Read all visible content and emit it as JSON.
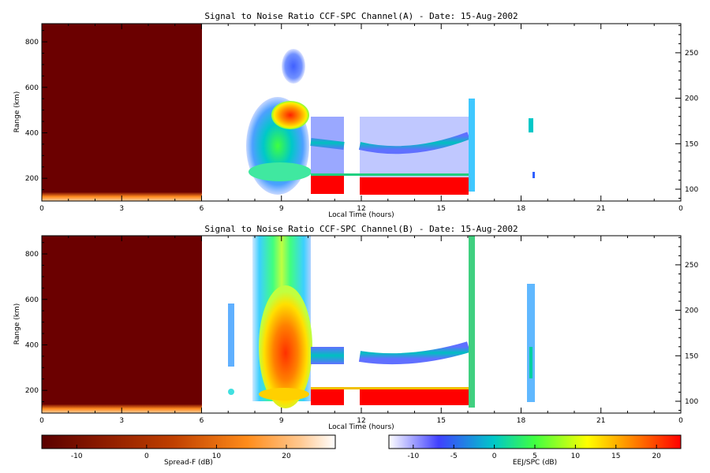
{
  "chart_data": [
    {
      "type": "heatmap",
      "title": "Signal to Noise Ratio CCF-SPC Channel(A) - Date: 15-Aug-2002",
      "xlabel": "Local Time (hours)",
      "ylabel": "Range (km)",
      "xlim": [
        0,
        24
      ],
      "ylim": [
        100,
        880
      ],
      "y2lim": [
        87,
        282
      ],
      "x_ticks": [
        "0",
        "3",
        "6",
        "9",
        "12",
        "15",
        "18",
        "21",
        "0"
      ],
      "y_ticks": [
        "200",
        "400",
        "600",
        "800"
      ],
      "y2_ticks": [
        "100",
        "150",
        "200",
        "250"
      ],
      "regions": [
        {
          "kind": "spread-f-background",
          "x": [
            0,
            6
          ],
          "y": [
            100,
            880
          ],
          "value_db": -15
        },
        {
          "kind": "spread-f-bottom-echo",
          "x": [
            0,
            6
          ],
          "y": [
            100,
            130
          ],
          "value_db": 15
        },
        {
          "kind": "spread-f-blob",
          "x": [
            8,
            10.1
          ],
          "y": [
            170,
            560
          ],
          "value_db": 8
        },
        {
          "kind": "spread-f-hotspot",
          "x": [
            9,
            9.8
          ],
          "y": [
            420,
            510
          ],
          "value_db": 20
        },
        {
          "kind": "spread-f-cap",
          "x": [
            9.2,
            9.8
          ],
          "y": [
            580,
            720
          ],
          "value_db": 0
        },
        {
          "kind": "eej-band",
          "x": [
            10.1,
            16.1
          ],
          "y": [
            120,
            200
          ],
          "value_db": 22
        },
        {
          "kind": "eej-layer",
          "x": [
            10.1,
            16.1
          ],
          "y": [
            300,
            360
          ],
          "value_db": 0
        },
        {
          "kind": "eej-patch",
          "x": [
            18.3,
            18.5
          ],
          "y": [
            380,
            430
          ],
          "value_db": 5
        }
      ]
    },
    {
      "type": "heatmap",
      "title": "Signal to Noise Ratio CCF-SPC Channel(B) - Date: 15-Aug-2002",
      "xlabel": "Local Time (hours)",
      "ylabel": "Range (km)",
      "xlim": [
        0,
        24
      ],
      "ylim": [
        100,
        880
      ],
      "y2lim": [
        87,
        282
      ],
      "x_ticks": [
        "0",
        "3",
        "6",
        "9",
        "12",
        "15",
        "18",
        "21",
        "0"
      ],
      "y_ticks": [
        "200",
        "400",
        "600",
        "800"
      ],
      "y2_ticks": [
        "100",
        "150",
        "200",
        "250"
      ],
      "regions": [
        {
          "kind": "spread-f-background",
          "x": [
            0,
            6
          ],
          "y": [
            100,
            880
          ],
          "value_db": -15
        },
        {
          "kind": "spread-f-bottom-echo",
          "x": [
            0,
            6
          ],
          "y": [
            100,
            130
          ],
          "value_db": 15
        },
        {
          "kind": "spread-f-plume",
          "x": [
            8,
            10.1
          ],
          "y": [
            150,
            880
          ],
          "value_db": 10
        },
        {
          "kind": "spread-f-hotspot",
          "x": [
            9,
            9.9
          ],
          "y": [
            220,
            480
          ],
          "value_db": 20
        },
        {
          "kind": "eej-band",
          "x": [
            10.1,
            16.1
          ],
          "y": [
            120,
            200
          ],
          "value_db": 22
        },
        {
          "kind": "eej-layer",
          "x": [
            10.1,
            16.1
          ],
          "y": [
            330,
            380
          ],
          "value_db": -2
        },
        {
          "kind": "eej-streak",
          "x": [
            18.2,
            18.6
          ],
          "y": [
            150,
            660
          ],
          "value_db": 2
        }
      ]
    }
  ],
  "colorbars": [
    {
      "label": "Spread-F (dB)",
      "ticks": [
        "-10",
        "0",
        "10",
        "20"
      ],
      "min": -15,
      "max": 27,
      "colors": [
        "#5a0000",
        "#8b1a00",
        "#c04000",
        "#ff8c1a",
        "#ffc890",
        "#ffffff"
      ]
    },
    {
      "label": "EEJ/SPC (dB)",
      "ticks": [
        "-10",
        "-5",
        "0",
        "5",
        "10",
        "15",
        "20"
      ],
      "min": -13,
      "max": 23,
      "colors": [
        "#ffffff",
        "#4040ff",
        "#00c8c8",
        "#40ff40",
        "#ffff00",
        "#ff8000",
        "#ff0000"
      ]
    }
  ]
}
